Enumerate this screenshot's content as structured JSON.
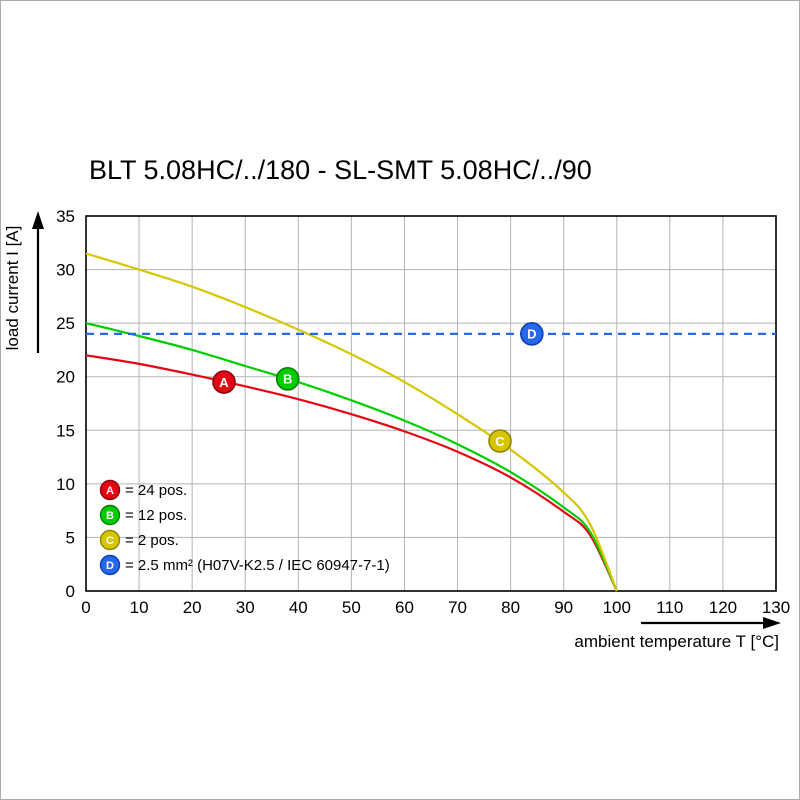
{
  "page": {
    "title": "BLT 5.08HC/../180 - SL-SMT 5.08HC/../90"
  },
  "chart_data": {
    "type": "line",
    "title": "BLT 5.08HC/../180 - SL-SMT 5.08HC/../90",
    "xlabel": "ambient temperature T [°C]",
    "ylabel": "load current I [A]",
    "xlim": [
      0,
      130
    ],
    "ylim": [
      0,
      35
    ],
    "x_ticks": [
      0,
      10,
      20,
      30,
      40,
      50,
      60,
      70,
      80,
      90,
      100,
      110,
      120,
      130
    ],
    "y_ticks": [
      0,
      5,
      10,
      15,
      20,
      25,
      30,
      35
    ],
    "grid": true,
    "grid_color": "#b3b3b3",
    "legend_position": "inside-bottom-left",
    "series": [
      {
        "id": "A",
        "legend": "= 24 pos.",
        "color": "#e30613",
        "edge": "#8f000c",
        "style": "solid",
        "marker_at": [
          26,
          19.5
        ],
        "points": [
          [
            0,
            22
          ],
          [
            10,
            21.2
          ],
          [
            20,
            20.2
          ],
          [
            30,
            19.1
          ],
          [
            40,
            17.9
          ],
          [
            50,
            16.5
          ],
          [
            60,
            14.9
          ],
          [
            70,
            13.0
          ],
          [
            80,
            10.6
          ],
          [
            90,
            7.4
          ],
          [
            95,
            5.2
          ],
          [
            100,
            0
          ]
        ]
      },
      {
        "id": "B",
        "legend": "= 12 pos.",
        "color": "#00cc00",
        "edge": "#008200",
        "style": "solid",
        "marker_at": [
          38,
          19.8
        ],
        "points": [
          [
            0,
            25
          ],
          [
            10,
            23.8
          ],
          [
            20,
            22.5
          ],
          [
            30,
            21.0
          ],
          [
            40,
            19.5
          ],
          [
            50,
            17.8
          ],
          [
            60,
            15.9
          ],
          [
            70,
            13.7
          ],
          [
            80,
            11.1
          ],
          [
            90,
            7.8
          ],
          [
            95,
            5.5
          ],
          [
            100,
            0
          ]
        ]
      },
      {
        "id": "C",
        "legend": "= 2 pos.",
        "color": "#d6c600",
        "edge": "#8f8400",
        "style": "solid",
        "marker_at": [
          78,
          14.0
        ],
        "points": [
          [
            0,
            31.5
          ],
          [
            10,
            30.0
          ],
          [
            20,
            28.4
          ],
          [
            30,
            26.5
          ],
          [
            40,
            24.4
          ],
          [
            50,
            22.1
          ],
          [
            60,
            19.5
          ],
          [
            70,
            16.5
          ],
          [
            80,
            13.2
          ],
          [
            90,
            9.2
          ],
          [
            95,
            6.2
          ],
          [
            100,
            0
          ]
        ]
      },
      {
        "id": "D",
        "legend": "= 2.5 mm² (H07V-K2.5 / IEC 60947-7-1)",
        "color": "#2667ee",
        "edge": "#0b3fae",
        "style": "dashed",
        "marker_at": [
          84,
          24
        ],
        "points": [
          [
            0,
            24
          ],
          [
            130,
            24
          ]
        ]
      }
    ]
  }
}
